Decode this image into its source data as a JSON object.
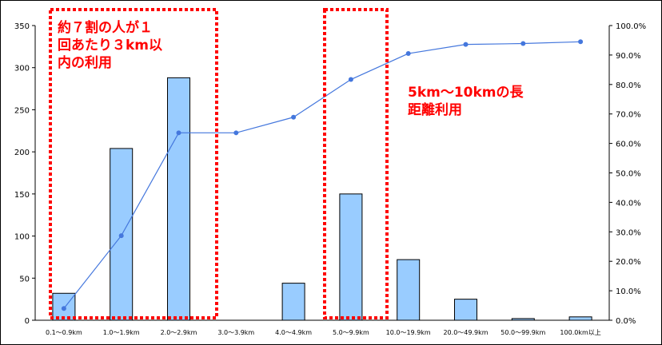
{
  "chart_data": {
    "type": "bar+line",
    "categories": [
      "0.1～0.9km",
      "1.0～1.9km",
      "2.0～2.9km",
      "3.0～3.9km",
      "4.0～4.9km",
      "5.0～9.9km",
      "10.0～19.9km",
      "20.0～49.9km",
      "50.0～99.9km",
      "100.0km以上"
    ],
    "bars": {
      "values": [
        32,
        204,
        288,
        0,
        44,
        150,
        72,
        25,
        2,
        4
      ],
      "color": "#99ccff"
    },
    "line": {
      "values": [
        4.0,
        28.7,
        63.6,
        63.6,
        68.9,
        81.7,
        90.5,
        93.6,
        93.9,
        94.5
      ],
      "color": "#4477dd"
    },
    "left_axis": {
      "ylim": [
        0,
        350
      ],
      "ticks": [
        0,
        50,
        100,
        150,
        200,
        250,
        300,
        350
      ]
    },
    "right_axis": {
      "ylim": [
        0,
        100
      ],
      "ticks": [
        "0.0%",
        "10.0%",
        "20.0%",
        "30.0%",
        "40.0%",
        "50.0%",
        "60.0%",
        "70.0%",
        "80.0%",
        "90.0%",
        "100.0%"
      ]
    },
    "annotations": [
      {
        "lines": [
          "約７割の人が１",
          "回あたり３km以",
          "内の利用"
        ],
        "box_covers": [
          "0.1～0.9km",
          "2.0～2.9km"
        ]
      },
      {
        "lines": [
          "5km～10kmの長",
          "距離利用"
        ],
        "box_covers": [
          "5.0～9.9km"
        ]
      }
    ],
    "grid": false,
    "colors": {
      "annotation": "#ff0000"
    }
  }
}
